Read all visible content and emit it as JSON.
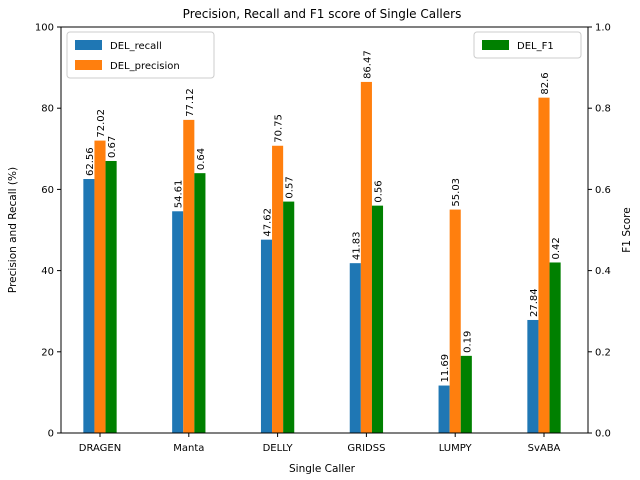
{
  "chart_data": {
    "type": "bar",
    "title": "Precision, Recall and F1 score of Single Callers",
    "xlabel": "Single Caller",
    "ylabel": "Precision and Recall (%)",
    "y2label": "F1 Score",
    "categories": [
      "DRAGEN",
      "Manta",
      "DELLY",
      "GRIDSS",
      "LUMPY",
      "SvABA"
    ],
    "ylim": [
      0,
      100
    ],
    "y2lim": [
      0,
      1.0
    ],
    "yticks": [
      "0",
      "20",
      "40",
      "60",
      "80",
      "100"
    ],
    "y2ticks": [
      "0.0",
      "0.2",
      "0.4",
      "0.6",
      "0.8",
      "1.0"
    ],
    "grid": false,
    "series": [
      {
        "name": "DEL_recall",
        "axis": "left",
        "color": "#1f77b4",
        "values": [
          62.56,
          54.61,
          47.62,
          41.83,
          11.69,
          27.84
        ],
        "labels": [
          "62.56",
          "54.61",
          "47.62",
          "41.83",
          "11.69",
          "27.84"
        ]
      },
      {
        "name": "DEL_precision",
        "axis": "left",
        "color": "#ff7f0e",
        "values": [
          72.02,
          77.12,
          70.75,
          86.47,
          55.03,
          82.6
        ],
        "labels": [
          "72.02",
          "77.12",
          "70.75",
          "86.47",
          "55.03",
          "82.6"
        ]
      },
      {
        "name": "DEL_F1",
        "axis": "right",
        "color": "#008000",
        "values": [
          0.67,
          0.64,
          0.57,
          0.56,
          0.19,
          0.42
        ],
        "labels": [
          "0.67",
          "0.64",
          "0.57",
          "0.56",
          "0.19",
          "0.42"
        ]
      }
    ],
    "legends": [
      {
        "placement": "top-left",
        "entries": [
          "DEL_recall",
          "DEL_precision"
        ]
      },
      {
        "placement": "top-right",
        "entries": [
          "DEL_F1"
        ]
      }
    ]
  }
}
